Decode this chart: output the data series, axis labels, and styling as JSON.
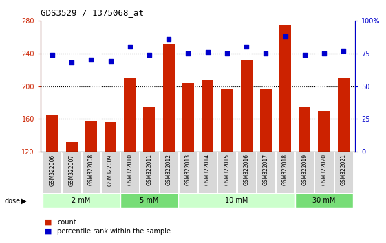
{
  "title": "GDS3529 / 1375068_at",
  "samples": [
    "GSM322006",
    "GSM322007",
    "GSM322008",
    "GSM322009",
    "GSM322010",
    "GSM322011",
    "GSM322012",
    "GSM322013",
    "GSM322014",
    "GSM322015",
    "GSM322016",
    "GSM322017",
    "GSM322018",
    "GSM322019",
    "GSM322020",
    "GSM322021"
  ],
  "counts": [
    165,
    132,
    158,
    157,
    210,
    175,
    252,
    204,
    208,
    197,
    232,
    196,
    275,
    175,
    170,
    210
  ],
  "percentiles": [
    74,
    68,
    70,
    69,
    80,
    74,
    86,
    75,
    76,
    75,
    80,
    75,
    88,
    74,
    75,
    77
  ],
  "ylim_left": [
    120,
    280
  ],
  "ylim_right": [
    0,
    100
  ],
  "yticks_left": [
    120,
    160,
    200,
    240,
    280
  ],
  "yticks_right": [
    0,
    25,
    50,
    75,
    100
  ],
  "yticklabels_right": [
    "0",
    "25",
    "50",
    "75",
    "100%"
  ],
  "bar_color": "#cc2200",
  "dot_color": "#0000cc",
  "dose_groups": [
    {
      "label": "2 mM",
      "start": 0,
      "end": 4,
      "color": "#ccffcc"
    },
    {
      "label": "5 mM",
      "start": 4,
      "end": 7,
      "color": "#77dd77"
    },
    {
      "label": "10 mM",
      "start": 7,
      "end": 13,
      "color": "#ccffcc"
    },
    {
      "label": "30 mM",
      "start": 13,
      "end": 16,
      "color": "#77dd77"
    }
  ],
  "grid_color": "#000000",
  "plot_bg": "#ffffff",
  "bar_width": 0.6,
  "gridlines": [
    160,
    200,
    240
  ]
}
